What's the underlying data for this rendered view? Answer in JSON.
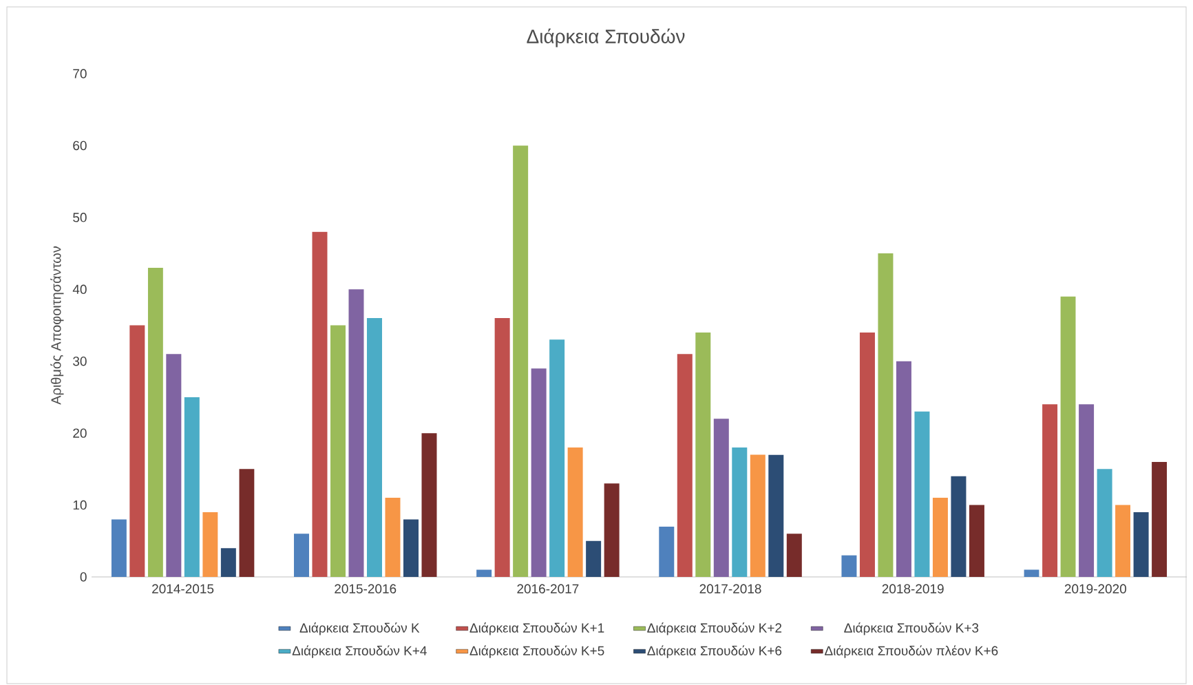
{
  "chart_data": {
    "type": "bar",
    "title": "Διάρκεια Σπουδών",
    "ylabel": "Αριθμός Αποφοιτησάντων",
    "categories": [
      "2014-2015",
      "2015-2016",
      "2016-2017",
      "2017-2018",
      "2018-2019",
      "2019-2020"
    ],
    "series": [
      {
        "name": "Διάρκεια Σπουδών Κ",
        "color": "#4f81bd",
        "values": [
          8,
          6,
          1,
          7,
          3,
          1
        ]
      },
      {
        "name": "Διάρκεια Σπουδών Κ+1",
        "color": "#c0504d",
        "values": [
          35,
          48,
          36,
          31,
          34,
          24
        ]
      },
      {
        "name": "Διάρκεια Σπουδών Κ+2",
        "color": "#9bbb59",
        "values": [
          43,
          35,
          60,
          34,
          45,
          39
        ]
      },
      {
        "name": "Διάρκεια Σπουδών Κ+3",
        "color": "#8064a2",
        "values": [
          31,
          40,
          29,
          22,
          30,
          24
        ]
      },
      {
        "name": "Διάρκεια Σπουδών Κ+4",
        "color": "#4bacc6",
        "values": [
          25,
          36,
          33,
          18,
          23,
          15
        ]
      },
      {
        "name": "Διάρκεια Σπουδών Κ+5",
        "color": "#f79646",
        "values": [
          9,
          11,
          18,
          17,
          11,
          10
        ]
      },
      {
        "name": "Διάρκεια Σπουδών Κ+6",
        "color": "#2c4d75",
        "values": [
          4,
          8,
          5,
          17,
          14,
          9
        ]
      },
      {
        "name": "Διάρκεια Σπουδών πλέον Κ+6",
        "color": "#772c2a",
        "values": [
          15,
          20,
          13,
          6,
          10,
          16
        ]
      }
    ],
    "ylim": [
      0,
      70
    ],
    "yticks": [
      0,
      10,
      20,
      30,
      40,
      50,
      60,
      70
    ],
    "legend": "bottom"
  }
}
